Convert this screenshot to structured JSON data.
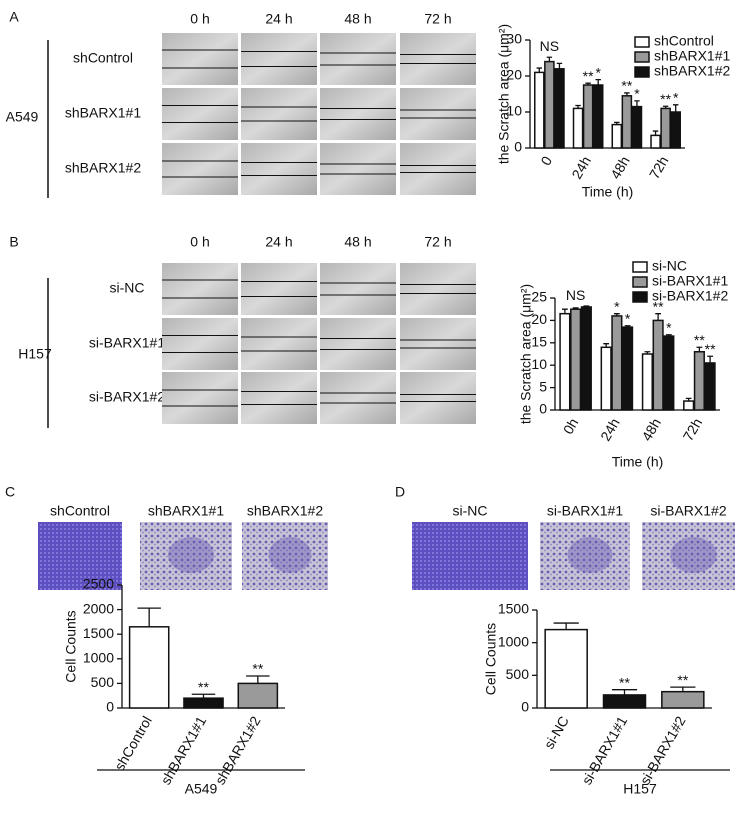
{
  "panels": [
    {
      "label": "A",
      "cell_line": "A549",
      "columns": [
        "0 h",
        "24 h",
        "48 h",
        "72 h"
      ],
      "rows": [
        "shControl",
        "shBARX1#1",
        "shBARX1#2"
      ]
    },
    {
      "label": "B",
      "cell_line": "H157",
      "columns": [
        "0 h",
        "24 h",
        "48 h",
        "72 h"
      ],
      "rows": [
        "si-NC",
        "si-BARX1#1",
        "si-BARX1#2"
      ]
    },
    {
      "label": "C",
      "images": [
        "shControl",
        "shBARX1#1",
        "shBARX1#2"
      ]
    },
    {
      "label": "D",
      "images": [
        "si-NC",
        "si-BARX1#1",
        "si-BARX1#2"
      ]
    }
  ],
  "chart_data": [
    {
      "type": "bar",
      "ylabel": "the Scratch area (μm²)",
      "xlabel": "Time (h)",
      "annotation": "NS",
      "categories": [
        "0",
        "24h",
        "48h",
        "72h"
      ],
      "ylim": [
        0,
        30
      ],
      "yticks": [
        0,
        10,
        20,
        30
      ],
      "legend": "upper right",
      "series": [
        {
          "name": "shControl",
          "color": "#ffffff",
          "values": [
            21,
            11,
            6.5,
            3.5
          ],
          "errors": [
            1.2,
            0.8,
            0.6,
            1.2
          ],
          "significance": [
            null,
            null,
            null,
            null
          ]
        },
        {
          "name": "shBARX1#1",
          "color": "#9a9a9a",
          "values": [
            24,
            17.5,
            14.5,
            11
          ],
          "errors": [
            1.2,
            0.5,
            0.8,
            0.6
          ],
          "significance": [
            null,
            "**",
            "**",
            "**"
          ]
        },
        {
          "name": "shBARX1#2",
          "color": "#111111",
          "values": [
            22,
            17.5,
            11.5,
            10
          ],
          "errors": [
            1.5,
            1.5,
            1.6,
            2
          ],
          "significance": [
            null,
            "*",
            "*",
            "*"
          ]
        }
      ]
    },
    {
      "type": "bar",
      "ylabel": "the Scratch area (μm²)",
      "xlabel": "Time (h)",
      "annotation": "NS",
      "categories": [
        "0h",
        "24h",
        "48h",
        "72h"
      ],
      "ylim": [
        0,
        25
      ],
      "yticks": [
        0,
        5,
        10,
        15,
        20,
        25
      ],
      "legend": "upper right",
      "series": [
        {
          "name": "si-NC",
          "color": "#ffffff",
          "values": [
            21.5,
            14,
            12.5,
            2
          ],
          "errors": [
            1,
            0.8,
            0.5,
            0.6
          ],
          "significance": [
            null,
            null,
            null,
            null
          ]
        },
        {
          "name": "si-BARX1#1",
          "color": "#9a9a9a",
          "values": [
            22.5,
            21,
            20,
            13
          ],
          "errors": [
            0.3,
            0.5,
            1.5,
            1
          ],
          "significance": [
            null,
            "*",
            "**",
            "**"
          ]
        },
        {
          "name": "si-BARX1#2",
          "color": "#111111",
          "values": [
            23,
            18.5,
            16.5,
            10.5
          ],
          "errors": [
            0.2,
            0.3,
            0.3,
            1.5
          ],
          "significance": [
            null,
            "*",
            "*",
            "**"
          ]
        }
      ]
    },
    {
      "type": "bar",
      "ylabel": "Cell Counts",
      "xlabel": "A549",
      "categories": [
        "shControl",
        "shBARX1#1",
        "shBARX1#2"
      ],
      "values": [
        1650,
        200,
        500
      ],
      "errors": [
        380,
        80,
        150
      ],
      "significance": [
        null,
        "**",
        "**"
      ],
      "colors": [
        "#ffffff",
        "#111111",
        "#9a9a9a"
      ],
      "ylim": [
        0,
        2500
      ],
      "yticks": [
        0,
        500,
        1000,
        1500,
        2000,
        2500
      ]
    },
    {
      "type": "bar",
      "ylabel": "Cell Counts",
      "xlabel": "H157",
      "categories": [
        "si-NC",
        "si-BARX1#1",
        "si-BARX1#2"
      ],
      "values": [
        1200,
        200,
        250
      ],
      "errors": [
        100,
        80,
        70
      ],
      "significance": [
        null,
        "**",
        "**"
      ],
      "colors": [
        "#ffffff",
        "#111111",
        "#9a9a9a"
      ],
      "ylim": [
        0,
        1500
      ],
      "yticks": [
        0,
        500,
        1000,
        1500
      ]
    }
  ]
}
